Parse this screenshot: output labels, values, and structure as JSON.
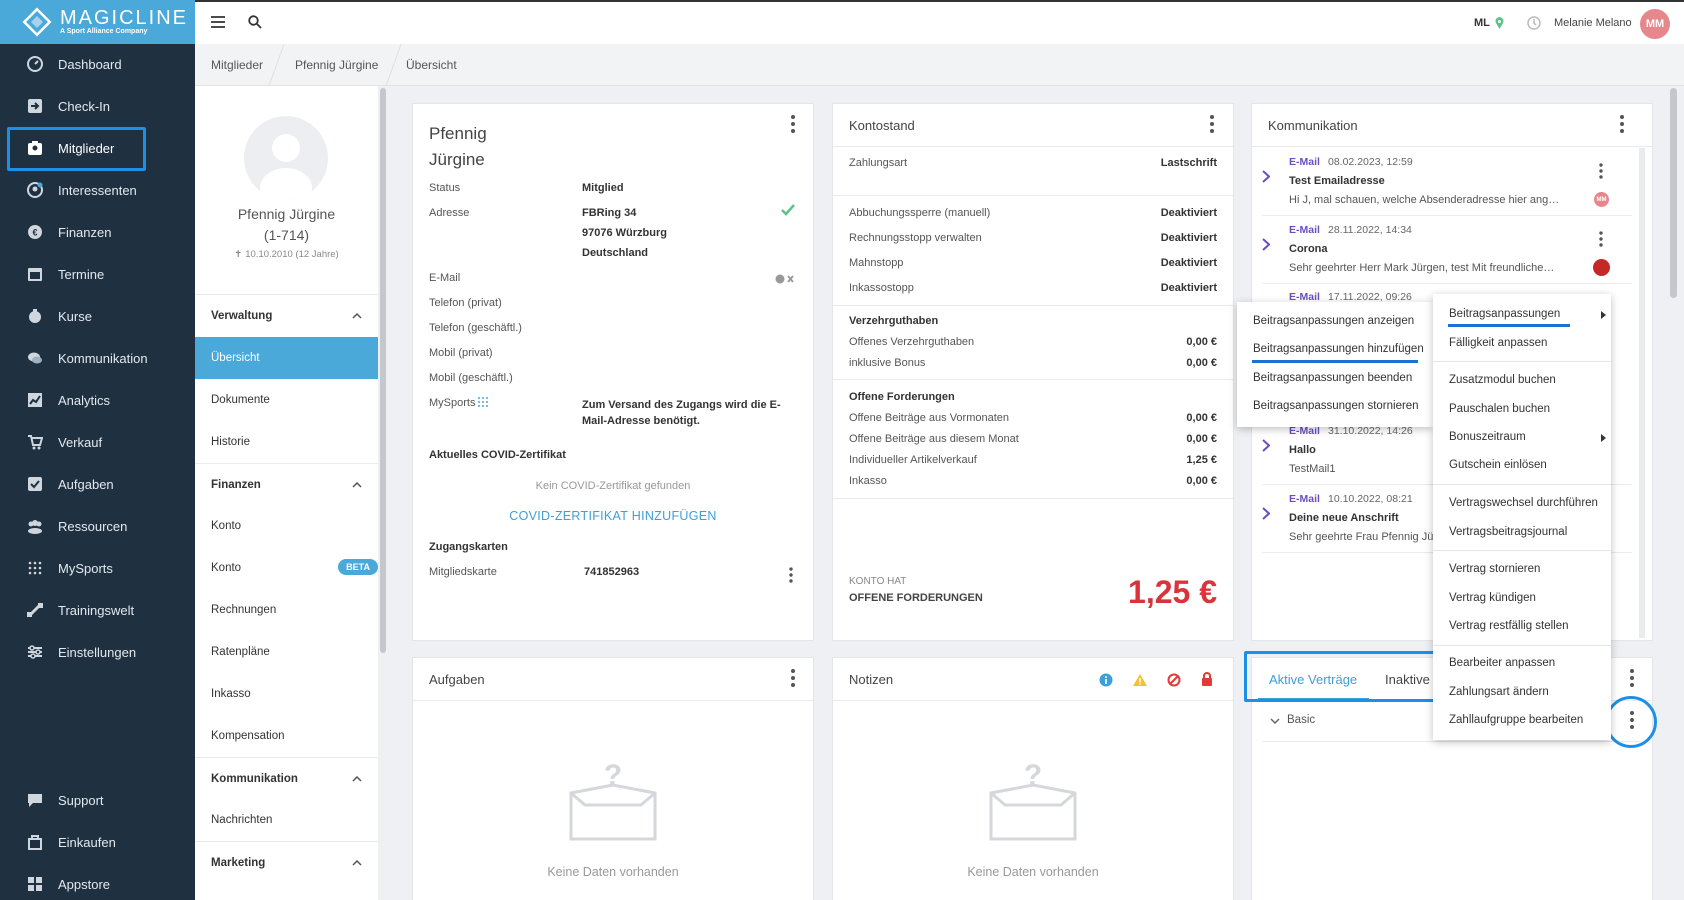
{
  "brand": {
    "name": "MAGICLINE",
    "tagline": "A Sport Alliance Company"
  },
  "sidebar": {
    "items": [
      {
        "label": "Dashboard",
        "icon": "dashboard-icon"
      },
      {
        "label": "Check-In",
        "icon": "check-in-icon"
      },
      {
        "label": "Mitglieder",
        "icon": "members-icon"
      },
      {
        "label": "Interessenten",
        "icon": "prospects-icon"
      },
      {
        "label": "Finanzen",
        "icon": "finance-icon"
      },
      {
        "label": "Termine",
        "icon": "calendar-icon"
      },
      {
        "label": "Kurse",
        "icon": "courses-icon"
      },
      {
        "label": "Kommunikation",
        "icon": "chat-icon"
      },
      {
        "label": "Analytics",
        "icon": "analytics-icon"
      },
      {
        "label": "Verkauf",
        "icon": "cart-icon"
      },
      {
        "label": "Aufgaben",
        "icon": "tasks-icon"
      },
      {
        "label": "Ressourcen",
        "icon": "resources-icon"
      },
      {
        "label": "MySports",
        "icon": "mysports-icon"
      },
      {
        "label": "Trainingswelt",
        "icon": "training-icon"
      },
      {
        "label": "Einstellungen",
        "icon": "settings-icon"
      }
    ],
    "bottom": [
      {
        "label": "Support",
        "icon": "support-icon"
      },
      {
        "label": "Einkaufen",
        "icon": "shop-icon"
      },
      {
        "label": "Appstore",
        "icon": "appstore-icon"
      }
    ]
  },
  "topbar": {
    "studio": "ML",
    "user": "Melanie Melano",
    "initials": "MM"
  },
  "breadcrumb": [
    "Mitglieder",
    "Pfennig Jürgine",
    "Übersicht"
  ],
  "member": {
    "name": "Pfennig Jürgine",
    "id": "(1-714)",
    "birth": "10.10.2010 (12 Jahre)"
  },
  "subnav": {
    "verwaltung": {
      "title": "Verwaltung",
      "items": [
        "Übersicht",
        "Dokumente",
        "Historie"
      ]
    },
    "finanzen": {
      "title": "Finanzen",
      "items": [
        "Konto",
        "Konto",
        "Rechnungen",
        "Ratenpläne",
        "Inkasso",
        "Kompensation"
      ],
      "beta": "BETA"
    },
    "kommunikation": {
      "title": "Kommunikation",
      "items": [
        "Nachrichten"
      ]
    },
    "marketing": {
      "title": "Marketing"
    }
  },
  "profile": {
    "first": "Pfennig",
    "last": "Jürgine",
    "status_label": "Status",
    "status": "Mitglied",
    "address_label": "Adresse",
    "street": "FBRing 34",
    "city": "97076 Würzburg",
    "country": "Deutschland",
    "email_label": "E-Mail",
    "phone_private": "Telefon (privat)",
    "phone_business": "Telefon (geschäftl.)",
    "mobile_private": "Mobil (privat)",
    "mobile_business": "Mobil (geschäftl.)",
    "mysports_label": "MySports",
    "mysports_note": "Zum Versand des Zugangs wird die E-Mail-Adresse benötigt.",
    "covid_title": "Aktuelles COVID-Zertifikat",
    "covid_empty": "Kein COVID-Zertifikat gefunden",
    "covid_add": "COVID-ZERTIFIKAT HINZUFÜGEN",
    "cards_title": "Zugangskarten",
    "card_label": "Mitgliedskarte",
    "card_number": "741852963"
  },
  "konto": {
    "title": "Kontostand",
    "zahlungsart_label": "Zahlungsart",
    "zahlungsart": "Lastschrift",
    "rows": [
      {
        "label": "Abbuchungssperre (manuell)",
        "value": "Deaktiviert"
      },
      {
        "label": "Rechnungsstopp verwalten",
        "value": "Deaktiviert"
      },
      {
        "label": "Mahnstopp",
        "value": "Deaktiviert"
      },
      {
        "label": "Inkassostopp",
        "value": "Deaktiviert"
      }
    ],
    "verzehr_title": "Verzehrguthaben",
    "verzehr": [
      {
        "label": "Offenes Verzehrguthaben",
        "value": "0,00 €"
      },
      {
        "label": "inklusive Bonus",
        "value": "0,00 €"
      }
    ],
    "forder_title": "Offene Forderungen",
    "forder": [
      {
        "label": "Offene Beiträge aus Vormonaten",
        "value": "0,00 €"
      },
      {
        "label": "Offene Beiträge aus diesem Monat",
        "value": "0,00 €"
      },
      {
        "label": "Individueller Artikelverkauf",
        "value": "1,25 €"
      },
      {
        "label": "Inkasso",
        "value": "0,00 €"
      }
    ],
    "footer_small": "KONTO HAT",
    "footer_big": "OFFENE FORDERUNGEN",
    "total": "1,25 €"
  },
  "kommunikation": {
    "title": "Kommunikation",
    "items": [
      {
        "type": "E-Mail",
        "date": "08.02.2023, 12:59",
        "subject": "Test Emailadresse",
        "preview": "Hi J, mal schauen, welche Absenderadresse hier ang…"
      },
      {
        "type": "E-Mail",
        "date": "28.11.2022, 14:34",
        "subject": "Corona",
        "preview": "Sehr geehrter Herr Mark Jürgen, test Mit freundliche…"
      },
      {
        "type": "E-Mail",
        "date": "17.11.2022, 09:26"
      },
      {
        "type": "E-Mail",
        "date": "31.10.2022, 14:26",
        "subject": "Hallo",
        "preview": "TestMail1"
      },
      {
        "type": "E-Mail",
        "date": "10.10.2022, 08:21",
        "subject": "Deine neue Anschrift",
        "preview": "Sehr geehrte Frau Pfennig Jür"
      }
    ]
  },
  "aufgaben": {
    "title": "Aufgaben",
    "empty": "Keine Daten vorhanden"
  },
  "notizen": {
    "title": "Notizen",
    "empty": "Keine Daten vorhanden"
  },
  "vertraege": {
    "tabs": [
      "Aktive Verträge",
      "Inaktive"
    ],
    "row": "Basic"
  },
  "submenu": [
    "Beitragsanpassungen anzeigen",
    "Beitragsanpassungen hinzufügen",
    "Beitragsanpassungen beenden",
    "Beitragsanpassungen stornieren"
  ],
  "mainmenu": [
    "Beitragsanpassungen",
    "Fälligkeit anpassen",
    "Zusatzmodul buchen",
    "Pauschalen buchen",
    "Bonuszeitraum",
    "Gutschein einlösen",
    "Vertragswechsel durchführen",
    "Vertragsbeitragsjournal",
    "Vertrag stornieren",
    "Vertrag kündigen",
    "Vertrag restfällig stellen",
    "Bearbeiter anpassen",
    "Zahlungsart ändern",
    "Zahllaufgruppe bearbeiten"
  ],
  "colors": {
    "sidebar": "#1f3140",
    "brand": "#4aa9d9",
    "highlight": "#1e8fe6",
    "accent_red": "#d9343a",
    "email_purple": "#6c4ec2"
  }
}
